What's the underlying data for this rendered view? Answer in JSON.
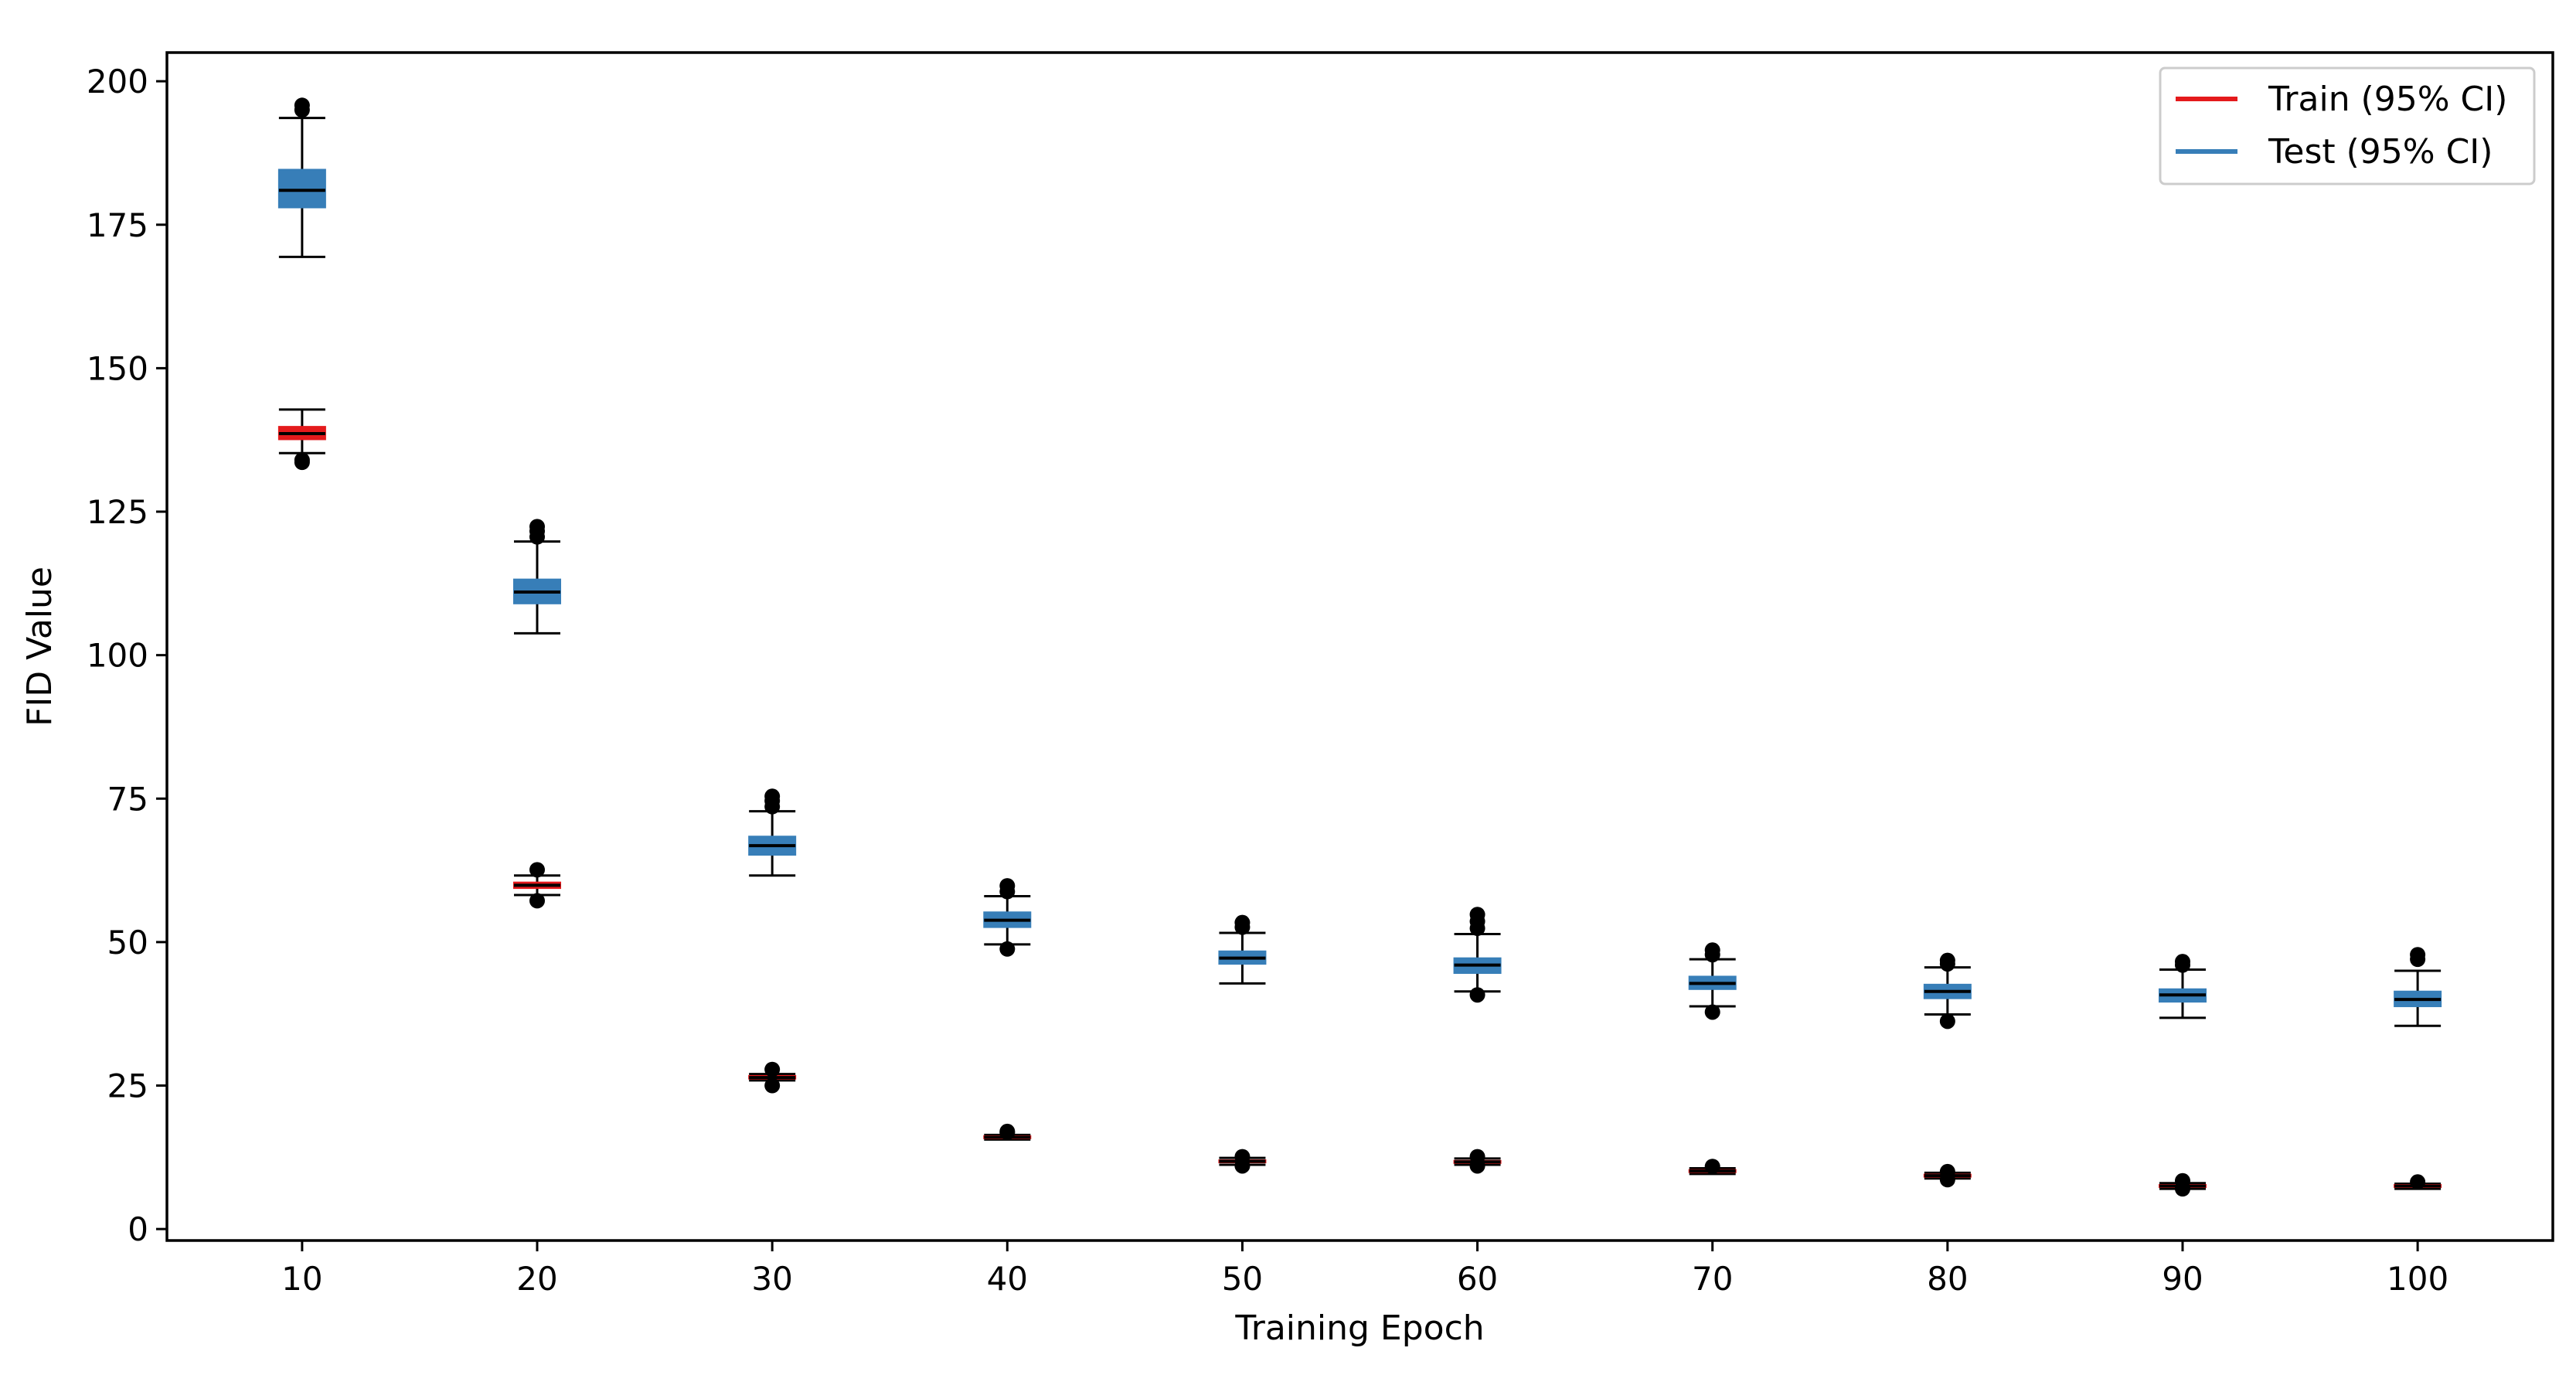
{
  "chart_data": {
    "type": "box",
    "title": "",
    "xlabel": "Training Epoch",
    "ylabel": "FID Value",
    "ylim": [
      -2,
      205
    ],
    "yticks": [
      0,
      25,
      50,
      75,
      100,
      125,
      150,
      175,
      200
    ],
    "categories": [
      "10",
      "20",
      "30",
      "40",
      "50",
      "60",
      "70",
      "80",
      "90",
      "100"
    ],
    "grid": false,
    "legend_position": "top-right",
    "series": [
      {
        "name": "Train (95% CI)",
        "color": "#e41a1c",
        "boxes": [
          {
            "whislo": 135.2,
            "q1": 137.6,
            "med": 138.6,
            "q3": 139.8,
            "whishi": 142.8,
            "fliers": [
              134.0,
              133.6
            ]
          },
          {
            "whislo": 58.2,
            "q1": 59.4,
            "med": 59.9,
            "q3": 60.4,
            "whishi": 61.6,
            "fliers": [
              57.2,
              62.6
            ]
          },
          {
            "whislo": 25.9,
            "q1": 26.2,
            "med": 26.4,
            "q3": 26.7,
            "whishi": 27.0,
            "fliers": [
              25.0,
              27.8
            ]
          },
          {
            "whislo": 15.6,
            "q1": 15.8,
            "med": 16.0,
            "q3": 16.2,
            "whishi": 16.4,
            "fliers": [
              17.0,
              16.8
            ]
          },
          {
            "whislo": 11.2,
            "q1": 11.6,
            "med": 11.8,
            "q3": 12.0,
            "whishi": 12.4,
            "fliers": [
              12.6,
              11.0
            ]
          },
          {
            "whislo": 11.2,
            "q1": 11.5,
            "med": 11.7,
            "q3": 11.9,
            "whishi": 12.3,
            "fliers": [
              12.6,
              11.0
            ]
          },
          {
            "whislo": 9.6,
            "q1": 9.9,
            "med": 10.1,
            "q3": 10.3,
            "whishi": 10.6,
            "fliers": [
              10.9
            ]
          },
          {
            "whislo": 8.8,
            "q1": 9.1,
            "med": 9.3,
            "q3": 9.5,
            "whishi": 9.8,
            "fliers": [
              10.0,
              8.6
            ]
          },
          {
            "whislo": 7.0,
            "q1": 7.3,
            "med": 7.5,
            "q3": 7.7,
            "whishi": 8.0,
            "fliers": [
              8.4,
              7.0
            ]
          },
          {
            "whislo": 7.0,
            "q1": 7.3,
            "med": 7.5,
            "q3": 7.7,
            "whishi": 7.9,
            "fliers": [
              8.2
            ]
          }
        ]
      },
      {
        "name": "Test (95% CI)",
        "color": "#377eb8",
        "boxes": [
          {
            "whislo": 169.4,
            "q1": 178.0,
            "med": 181.0,
            "q3": 184.6,
            "whishi": 193.6,
            "fliers": [
              195.0,
              195.8
            ]
          },
          {
            "whislo": 103.8,
            "q1": 109.0,
            "med": 111.0,
            "q3": 113.2,
            "whishi": 119.8,
            "fliers": [
              120.6,
              121.6,
              122.4
            ]
          },
          {
            "whislo": 61.6,
            "q1": 65.2,
            "med": 66.8,
            "q3": 68.4,
            "whishi": 72.8,
            "fliers": [
              73.6,
              74.6,
              75.4
            ]
          },
          {
            "whislo": 49.6,
            "q1": 52.6,
            "med": 53.8,
            "q3": 55.2,
            "whishi": 58.0,
            "fliers": [
              48.8,
              58.8,
              59.8
            ]
          },
          {
            "whislo": 42.8,
            "q1": 46.2,
            "med": 47.2,
            "q3": 48.4,
            "whishi": 51.6,
            "fliers": [
              52.6,
              53.4
            ]
          },
          {
            "whislo": 41.4,
            "q1": 44.6,
            "med": 46.0,
            "q3": 47.2,
            "whishi": 51.4,
            "fliers": [
              40.8,
              52.4,
              53.6,
              54.8
            ]
          },
          {
            "whislo": 38.8,
            "q1": 41.8,
            "med": 42.8,
            "q3": 44.0,
            "whishi": 47.0,
            "fliers": [
              37.8,
              47.8,
              48.6
            ]
          },
          {
            "whislo": 37.4,
            "q1": 40.2,
            "med": 41.4,
            "q3": 42.6,
            "whishi": 45.6,
            "fliers": [
              36.2,
              46.2,
              46.8
            ]
          },
          {
            "whislo": 36.8,
            "q1": 39.6,
            "med": 40.8,
            "q3": 41.8,
            "whishi": 45.2,
            "fliers": [
              46.0,
              46.6
            ]
          },
          {
            "whislo": 35.4,
            "q1": 38.8,
            "med": 40.0,
            "q3": 41.4,
            "whishi": 45.0,
            "fliers": [
              47.0,
              47.8
            ]
          }
        ]
      }
    ]
  }
}
